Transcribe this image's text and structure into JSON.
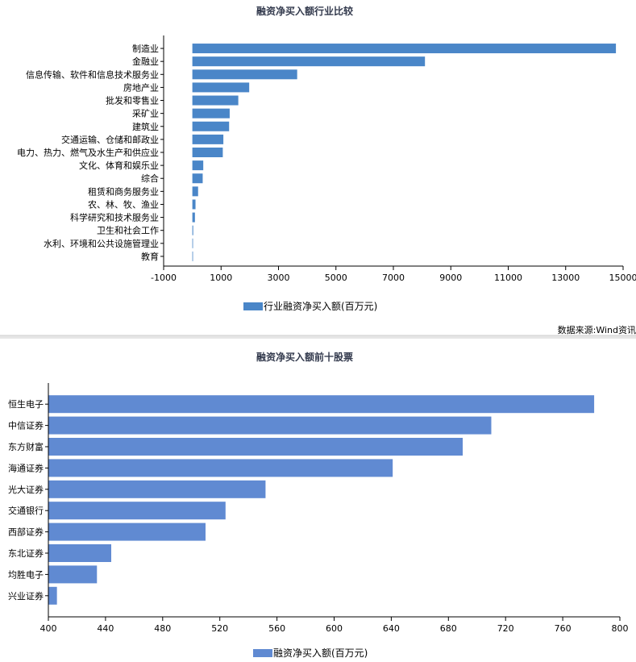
{
  "source_note": "数据来源:Wind资讯",
  "colors": {
    "chart1_bar": "#4a86c8",
    "chart2_bar": "#608ad2",
    "divider": "#d6d6d6"
  },
  "chart_data": [
    {
      "type": "bar",
      "orientation": "horizontal",
      "title": "融资净买入额行业比较",
      "categories": [
        "制造业",
        "金融业",
        "信息传输、软件和信息技术服务业",
        "房地产业",
        "批发和零售业",
        "采矿业",
        "建筑业",
        "交通运输、仓储和邮政业",
        "电力、热力、燃气及水生产和供应业",
        "文化、体育和娱乐业",
        "综合",
        "租赁和商务服务业",
        "农、林、牧、渔业",
        "科学研究和技术服务业",
        "卫生和社会工作",
        "水利、环境和公共设施管理业",
        "教育"
      ],
      "series": [
        {
          "name": "行业融资净买入额(百万元)",
          "values": [
            14750,
            8100,
            3650,
            1980,
            1600,
            1300,
            1280,
            1080,
            1060,
            380,
            360,
            200,
            110,
            90,
            30,
            20,
            10
          ]
        }
      ],
      "xlim": [
        -1000,
        15000
      ],
      "xticks": [
        "-1000",
        "1000",
        "3000",
        "5000",
        "7000",
        "9000",
        "11000",
        "13000",
        "15000"
      ],
      "legend": "bottom-center",
      "grid": false
    },
    {
      "type": "bar",
      "orientation": "horizontal",
      "title": "融资净买入额前十股票",
      "categories": [
        "恒生电子",
        "中信证券",
        "东方财富",
        "海通证券",
        "光大证券",
        "交通银行",
        "西部证券",
        "东北证券",
        "均胜电子",
        "兴业证券"
      ],
      "series": [
        {
          "name": "融资净买入额(百万元)",
          "values": [
            782,
            710,
            690,
            641,
            552,
            524,
            510,
            444,
            434,
            406
          ]
        }
      ],
      "xlim": [
        400,
        800
      ],
      "xticks": [
        "400",
        "440",
        "480",
        "520",
        "560",
        "600",
        "640",
        "680",
        "720",
        "760",
        "800"
      ],
      "legend": "bottom-center",
      "grid": false
    }
  ]
}
